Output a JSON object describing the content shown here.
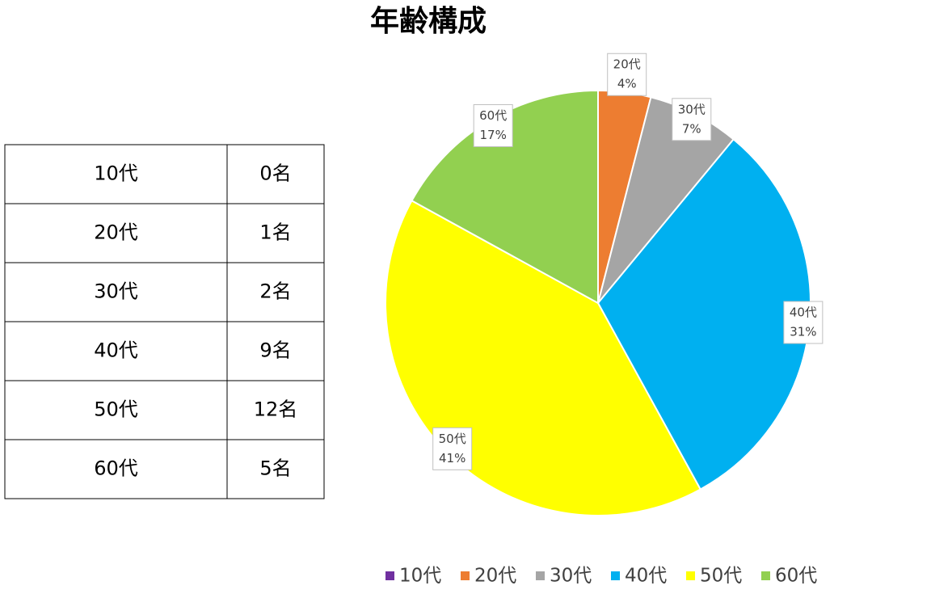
{
  "chart_data": {
    "type": "pie",
    "title": "年齢構成",
    "categories": [
      "10代",
      "20代",
      "30代",
      "40代",
      "50代",
      "60代"
    ],
    "values": [
      0,
      4,
      7,
      31,
      41,
      17
    ],
    "value_labels": [
      null,
      "4%",
      "7%",
      "31%",
      "41%",
      "17%"
    ],
    "colors": [
      "#7030a0",
      "#ed7d31",
      "#a5a5a5",
      "#00b0f0",
      "#ffff00",
      "#92d050"
    ],
    "legend": "bottom"
  },
  "table": {
    "rows": [
      [
        "10代",
        "0名"
      ],
      [
        "20代",
        "1名"
      ],
      [
        "30代",
        "2名"
      ],
      [
        "40代",
        "9名"
      ],
      [
        "50代",
        "12名"
      ],
      [
        "60代",
        "5名"
      ]
    ]
  }
}
